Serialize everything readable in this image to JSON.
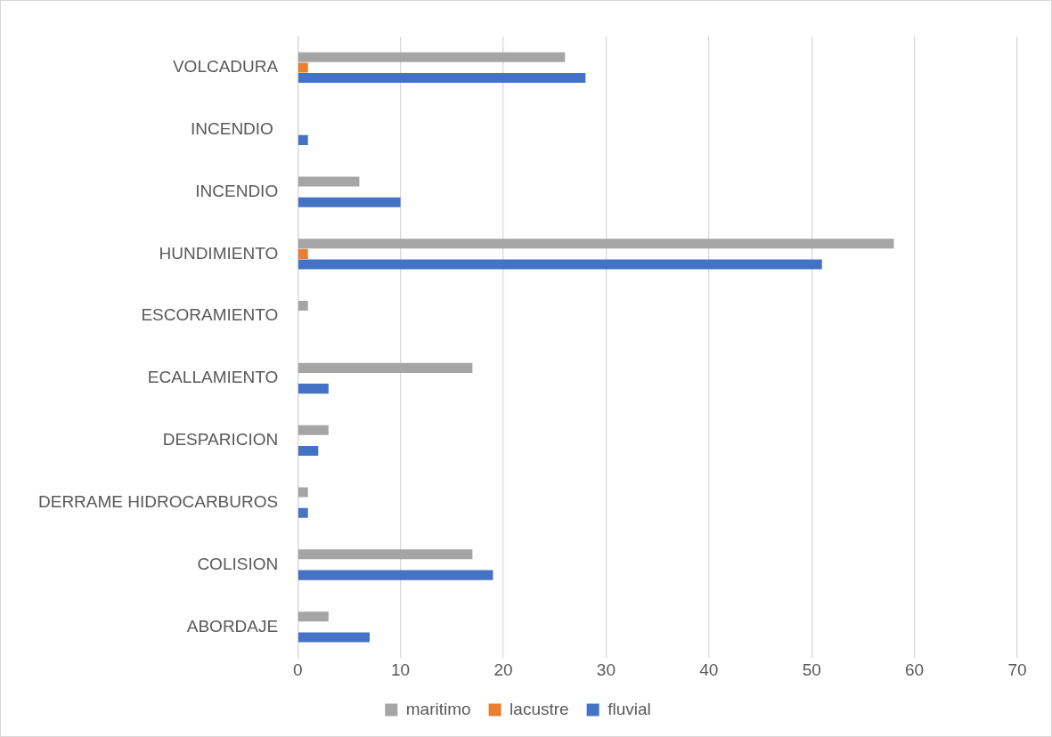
{
  "chart_data": {
    "type": "bar",
    "orientation": "horizontal",
    "categories": [
      "VOLCADURA",
      "INCENDIO ",
      "INCENDIO",
      "HUNDIMIENTO",
      "ESCORAMIENTO",
      "ECALLAMIENTO",
      "DESPARICION",
      "DERRAME HIDROCARBUROS",
      "COLISION",
      "ABORDAJE"
    ],
    "series": [
      {
        "name": "maritimo",
        "color": "#a5a5a5",
        "values": [
          26,
          null,
          6,
          58,
          1,
          17,
          3,
          1,
          17,
          3
        ]
      },
      {
        "name": "lacustre",
        "color": "#ed7d31",
        "values": [
          1,
          null,
          null,
          1,
          null,
          null,
          null,
          null,
          null,
          null
        ]
      },
      {
        "name": "fluvial",
        "color": "#4472c4",
        "values": [
          28,
          1,
          10,
          51,
          null,
          3,
          2,
          1,
          19,
          7
        ]
      }
    ],
    "xlim": [
      0,
      70
    ],
    "xticks": [
      0,
      10,
      20,
      30,
      40,
      50,
      60,
      70
    ],
    "grid": "x",
    "legend": "bottom"
  }
}
